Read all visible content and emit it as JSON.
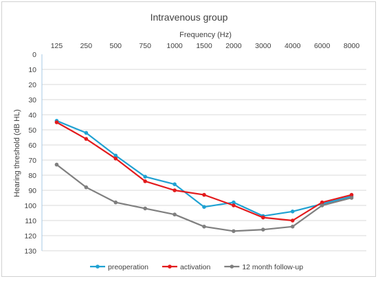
{
  "chart_data": {
    "type": "line",
    "title": "Intravenous group",
    "xlabel": "Frequency (Hz)",
    "ylabel": "Hearing threshold (dB HL)",
    "categories": [
      "125",
      "250",
      "500",
      "750",
      "1000",
      "1500",
      "2000",
      "3000",
      "4000",
      "6000",
      "8000"
    ],
    "y_ticks": [
      "0",
      "10",
      "20",
      "30",
      "40",
      "50",
      "60",
      "70",
      "80",
      "90",
      "100",
      "110",
      "120",
      "130"
    ],
    "ylim": [
      0,
      130
    ],
    "y_inverted": true,
    "x_axis_position": "top",
    "grid": "horizontal",
    "legend_position": "bottom",
    "series": [
      {
        "name": "preoperation",
        "color": "#1fa1d2",
        "values": [
          44,
          52,
          67,
          81,
          86,
          101,
          98,
          107,
          104,
          99,
          94
        ]
      },
      {
        "name": "activation",
        "color": "#e31a1c",
        "values": [
          45,
          56,
          69,
          84,
          90,
          93,
          100,
          108,
          110,
          98,
          93
        ]
      },
      {
        "name": "12 month follow-up",
        "color": "#7f7f7f",
        "values": [
          73,
          88,
          98,
          102,
          106,
          114,
          117,
          116,
          114,
          100,
          95
        ]
      }
    ]
  }
}
